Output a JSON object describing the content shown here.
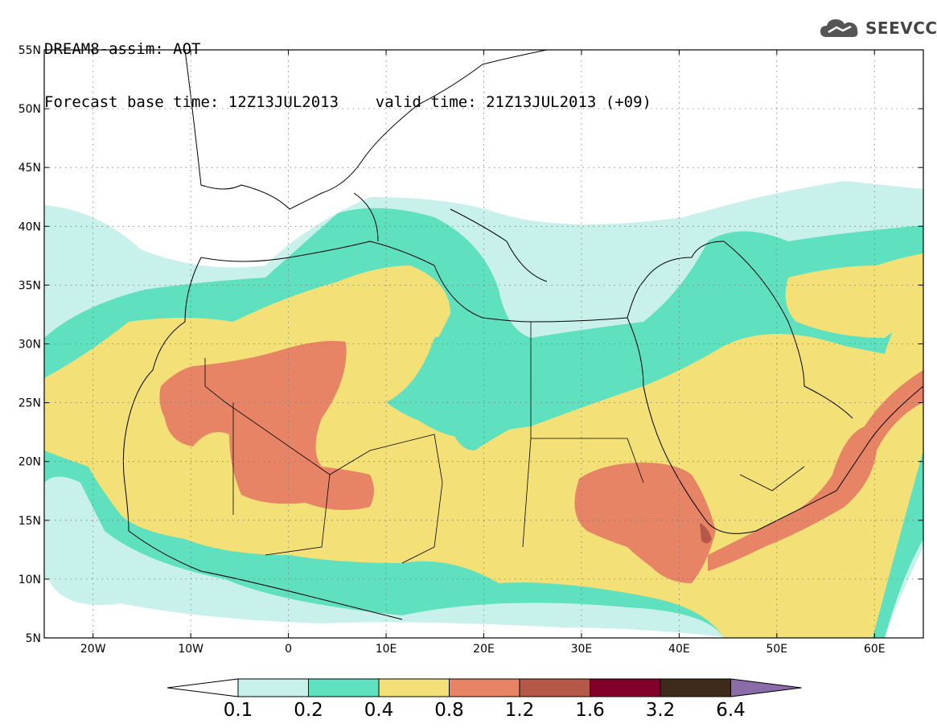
{
  "header": {
    "line1": "DREAM8-assim: AOT",
    "line2": "Forecast base time: 12Z13JUL2013    valid time: 21Z13JUL2013 (+09)"
  },
  "logo": {
    "text": "SEEVCCC",
    "icon": "cloud-logo-icon"
  },
  "map": {
    "lon_range": [
      -25,
      65
    ],
    "lat_range": [
      5,
      55
    ],
    "grid": "dotted",
    "lat_labels": [
      "55N",
      "50N",
      "45N",
      "40N",
      "35N",
      "30N",
      "25N",
      "20N",
      "15N",
      "10N",
      "5N"
    ],
    "lon_labels": [
      "20W",
      "10W",
      "0",
      "10E",
      "20E",
      "30E",
      "40E",
      "50E",
      "60E"
    ]
  },
  "legend": {
    "labels": [
      "0.1",
      "0.2",
      "0.4",
      "0.8",
      "1.2",
      "1.6",
      "3.2",
      "6.4"
    ],
    "colors": [
      "#ffffff",
      "#c8f1ec",
      "#5fe0bf",
      "#f3e076",
      "#e88466",
      "#b65848",
      "#800029",
      "#3d2a1a",
      "#8b6ba8"
    ]
  }
}
